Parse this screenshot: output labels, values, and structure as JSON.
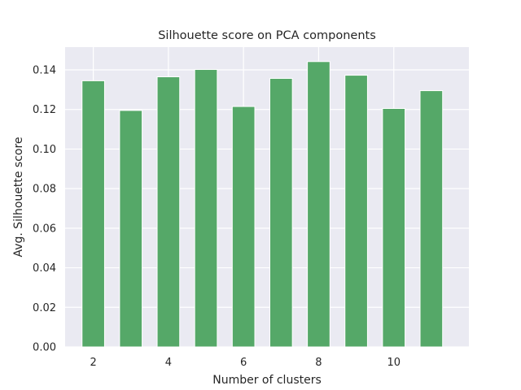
{
  "chart_data": {
    "type": "bar",
    "title": "Silhouette score on PCA components",
    "xlabel": "Number of clusters",
    "ylabel": "Avg. Silhouette score",
    "x": [
      2,
      3,
      4,
      5,
      6,
      7,
      8,
      9,
      10,
      11
    ],
    "values": [
      0.1345,
      0.1195,
      0.1365,
      0.1402,
      0.1215,
      0.1357,
      0.1442,
      0.1373,
      0.1205,
      0.1295
    ],
    "xticks": [
      2,
      4,
      6,
      8,
      10
    ],
    "xtick_labels": [
      "2",
      "4",
      "6",
      "8",
      "10"
    ],
    "yticks": [
      0,
      0.02,
      0.04,
      0.06,
      0.08,
      0.1,
      0.12,
      0.14
    ],
    "ytick_labels": [
      "0.00",
      "0.02",
      "0.04",
      "0.06",
      "0.08",
      "0.10",
      "0.12",
      "0.14"
    ],
    "xlim": [
      1.25,
      12.0
    ],
    "ylim": [
      0,
      0.1515
    ],
    "bar_width": 0.6,
    "grid": true,
    "legend": "none",
    "colors": {
      "bar": "#55a868",
      "bar_edge": "#ffffff",
      "plot_background": "#eaeaf2",
      "grid": "#ffffff",
      "text": "#262626"
    }
  }
}
